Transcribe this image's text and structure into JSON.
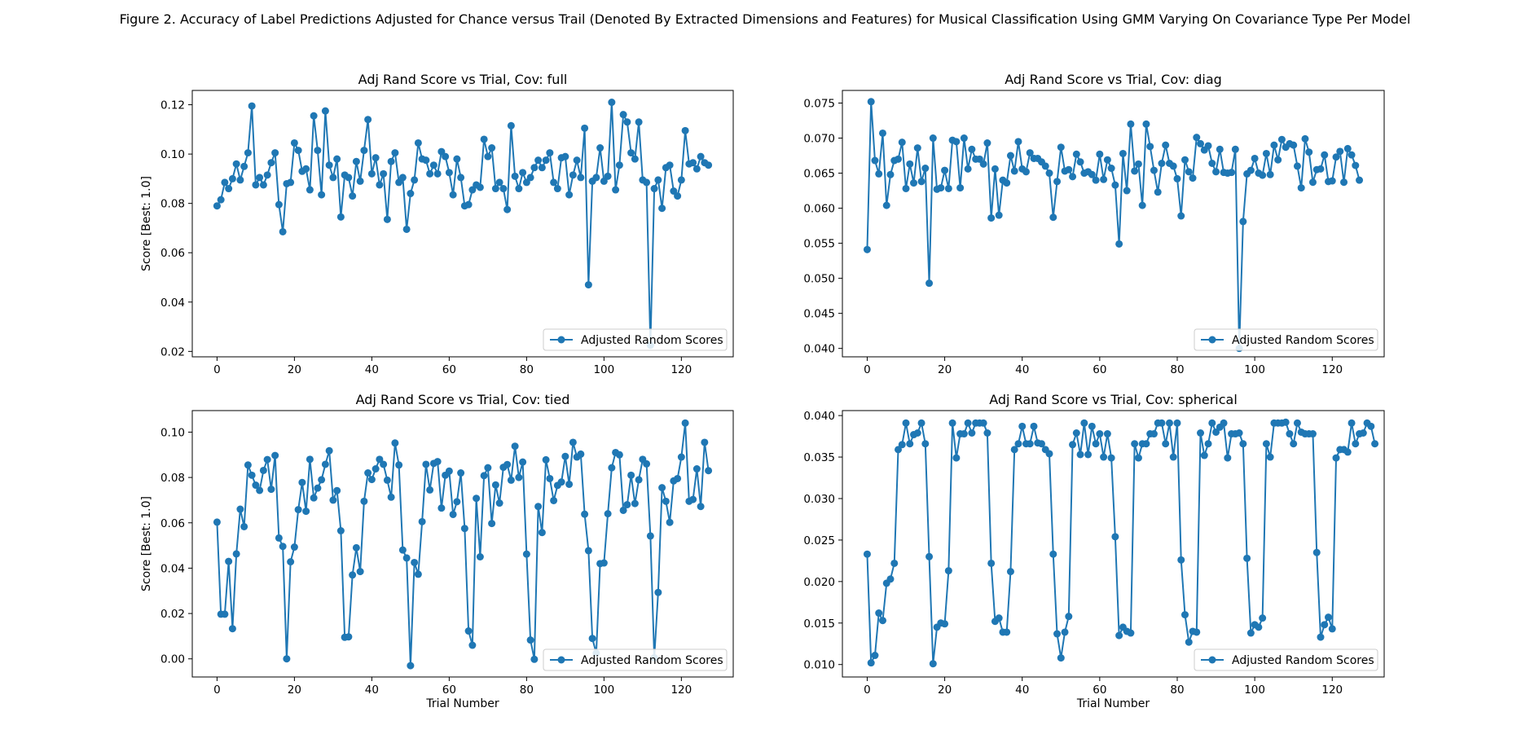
{
  "figure": {
    "title": "Figure 2. Accuracy of Label Predictions Adjusted for Chance versus Trail (Denoted By Extracted Dimensions and Features) for Musical Classification Using GMM Varying On Covariance Type Per Model"
  },
  "colors": {
    "series": "#1f77b4",
    "axes": "#000000",
    "background": "#ffffff"
  },
  "chart_data": [
    {
      "type": "line",
      "title": "Adj Rand Score vs Trial, Cov: full",
      "xlabel": "",
      "ylabel": "Score [Best: 1.0]",
      "xlim": [
        -6.4,
        133.4
      ],
      "ylim": [
        0.0178,
        0.1258
      ],
      "xticks": [
        0,
        20,
        40,
        60,
        80,
        100,
        120
      ],
      "xtick_labels": [
        "0",
        "20",
        "40",
        "60",
        "80",
        "100",
        "120"
      ],
      "yticks": [
        0.02,
        0.04,
        0.06,
        0.08,
        0.1,
        0.12
      ],
      "ytick_labels": [
        "0.02",
        "0.04",
        "0.06",
        "0.08",
        "0.10",
        "0.12"
      ],
      "grid": false,
      "legend": {
        "position": "lower-right",
        "entries": [
          "Adjusted Random Scores"
        ]
      },
      "series": [
        {
          "name": "Adjusted Random Scores",
          "marker": "circle",
          "values": [
            0.079,
            0.0815,
            0.0885,
            0.086,
            0.09,
            0.096,
            0.0895,
            0.095,
            0.1005,
            0.1195,
            0.0875,
            0.0905,
            0.0875,
            0.0915,
            0.0965,
            0.1005,
            0.0795,
            0.0685,
            0.088,
            0.0885,
            0.1045,
            0.1015,
            0.093,
            0.094,
            0.0855,
            0.1155,
            0.1015,
            0.0835,
            0.1175,
            0.0955,
            0.0905,
            0.098,
            0.0745,
            0.0915,
            0.0905,
            0.083,
            0.097,
            0.089,
            0.1015,
            0.114,
            0.092,
            0.0985,
            0.0875,
            0.092,
            0.0735,
            0.097,
            0.1005,
            0.0885,
            0.0905,
            0.0695,
            0.084,
            0.0895,
            0.1045,
            0.098,
            0.0975,
            0.092,
            0.0955,
            0.092,
            0.101,
            0.099,
            0.0925,
            0.0835,
            0.098,
            0.0905,
            0.079,
            0.0795,
            0.0855,
            0.0875,
            0.0865,
            0.106,
            0.099,
            0.1025,
            0.086,
            0.0885,
            0.086,
            0.0775,
            0.1115,
            0.091,
            0.086,
            0.0925,
            0.0885,
            0.0905,
            0.0945,
            0.0975,
            0.0945,
            0.0975,
            0.1005,
            0.0885,
            0.086,
            0.0985,
            0.099,
            0.0835,
            0.0915,
            0.0975,
            0.0905,
            0.1105,
            0.047,
            0.089,
            0.0905,
            0.1025,
            0.089,
            0.091,
            0.121,
            0.0855,
            0.0955,
            0.116,
            0.113,
            0.1005,
            0.098,
            0.113,
            0.0895,
            0.0885,
            0.0225,
            0.086,
            0.0895,
            0.078,
            0.0945,
            0.0955,
            0.085,
            0.083,
            0.0895,
            0.1095,
            0.096,
            0.0965,
            0.094,
            0.099,
            0.0965,
            0.0955
          ]
        }
      ]
    },
    {
      "type": "line",
      "title": "Adj Rand Score vs Trial, Cov: diag",
      "xlabel": "",
      "ylabel": "",
      "xlim": [
        -6.4,
        133.4
      ],
      "ylim": [
        0.0388,
        0.0768
      ],
      "xticks": [
        0,
        20,
        40,
        60,
        80,
        100,
        120
      ],
      "xtick_labels": [
        "0",
        "20",
        "40",
        "60",
        "80",
        "100",
        "120"
      ],
      "yticks": [
        0.04,
        0.045,
        0.05,
        0.055,
        0.06,
        0.065,
        0.07,
        0.075
      ],
      "ytick_labels": [
        "0.040",
        "0.045",
        "0.050",
        "0.055",
        "0.060",
        "0.065",
        "0.070",
        "0.075"
      ],
      "grid": false,
      "legend": {
        "position": "lower-right",
        "entries": [
          "Adjusted Random Scores"
        ]
      },
      "series": [
        {
          "name": "Adjusted Random Scores",
          "marker": "circle",
          "values": [
            0.0541,
            0.0752,
            0.0668,
            0.0649,
            0.0707,
            0.0604,
            0.0648,
            0.0668,
            0.067,
            0.0694,
            0.0628,
            0.0663,
            0.0636,
            0.0686,
            0.0638,
            0.0657,
            0.0493,
            0.07,
            0.0627,
            0.0629,
            0.0654,
            0.0628,
            0.0697,
            0.0695,
            0.0629,
            0.07,
            0.0656,
            0.0684,
            0.067,
            0.067,
            0.0663,
            0.0693,
            0.0586,
            0.0656,
            0.059,
            0.064,
            0.0636,
            0.0675,
            0.0653,
            0.0695,
            0.0656,
            0.0652,
            0.0679,
            0.0671,
            0.0671,
            0.0666,
            0.066,
            0.065,
            0.0587,
            0.0638,
            0.0687,
            0.0653,
            0.0655,
            0.0645,
            0.0677,
            0.0666,
            0.065,
            0.0652,
            0.0648,
            0.064,
            0.0677,
            0.0641,
            0.0669,
            0.0657,
            0.0633,
            0.0549,
            0.0678,
            0.0625,
            0.072,
            0.0653,
            0.0663,
            0.0604,
            0.072,
            0.0688,
            0.0654,
            0.0623,
            0.0664,
            0.069,
            0.0664,
            0.066,
            0.0642,
            0.0589,
            0.0669,
            0.0652,
            0.0643,
            0.0701,
            0.0692,
            0.0683,
            0.0689,
            0.0664,
            0.0652,
            0.0684,
            0.0651,
            0.065,
            0.0651,
            0.0684,
            0.04,
            0.0581,
            0.0649,
            0.0654,
            0.0671,
            0.065,
            0.0647,
            0.0678,
            0.0648,
            0.069,
            0.0669,
            0.0698,
            0.0687,
            0.0692,
            0.069,
            0.066,
            0.0629,
            0.0699,
            0.068,
            0.0637,
            0.0655,
            0.0656,
            0.0676,
            0.0638,
            0.0639,
            0.0673,
            0.0681,
            0.0637,
            0.0685,
            0.0676,
            0.0661,
            0.064
          ]
        }
      ]
    },
    {
      "type": "line",
      "title": "Adj Rand Score vs Trial, Cov: tied",
      "xlabel": "Trial Number",
      "ylabel": "Score [Best: 1.0]",
      "xlim": [
        -6.4,
        133.4
      ],
      "ylim": [
        -0.008,
        0.1095
      ],
      "xticks": [
        0,
        20,
        40,
        60,
        80,
        100,
        120
      ],
      "xtick_labels": [
        "0",
        "20",
        "40",
        "60",
        "80",
        "100",
        "120"
      ],
      "yticks": [
        0.0,
        0.02,
        0.04,
        0.06,
        0.08,
        0.1
      ],
      "ytick_labels": [
        "0.00",
        "0.02",
        "0.04",
        "0.06",
        "0.08",
        "0.10"
      ],
      "grid": false,
      "legend": {
        "position": "lower-right",
        "entries": [
          "Adjusted Random Scores"
        ]
      },
      "series": [
        {
          "name": "Adjusted Random Scores",
          "marker": "circle",
          "values": [
            0.0603,
            0.0197,
            0.0197,
            0.043,
            0.0133,
            0.0463,
            0.066,
            0.0583,
            0.0855,
            0.081,
            0.0766,
            0.0743,
            0.0831,
            0.0879,
            0.0748,
            0.0897,
            0.0533,
            0.0496,
            0.0,
            0.0428,
            0.0493,
            0.0658,
            0.0778,
            0.0651,
            0.088,
            0.071,
            0.0753,
            0.079,
            0.0858,
            0.0918,
            0.07,
            0.0742,
            0.0565,
            0.0095,
            0.0097,
            0.037,
            0.049,
            0.0385,
            0.0695,
            0.082,
            0.0791,
            0.0838,
            0.088,
            0.0858,
            0.0788,
            0.0713,
            0.0952,
            0.0855,
            0.048,
            0.0445,
            -0.003,
            0.0425,
            0.0373,
            0.0605,
            0.0858,
            0.0745,
            0.0862,
            0.087,
            0.0665,
            0.081,
            0.0828,
            0.0637,
            0.0693,
            0.082,
            0.0575,
            0.0123,
            0.006,
            0.0708,
            0.045,
            0.0808,
            0.0843,
            0.0597,
            0.0767,
            0.0687,
            0.0845,
            0.0857,
            0.0788,
            0.0938,
            0.08,
            0.0868,
            0.0462,
            0.0083,
            -0.0002,
            0.0672,
            0.0557,
            0.0878,
            0.0795,
            0.0698,
            0.0765,
            0.078,
            0.0893,
            0.077,
            0.0955,
            0.089,
            0.0903,
            0.0638,
            0.0477,
            0.009,
            0.0025,
            0.042,
            0.0423,
            0.064,
            0.0843,
            0.091,
            0.09,
            0.0655,
            0.068,
            0.081,
            0.0685,
            0.079,
            0.088,
            0.086,
            0.0542,
            0.0005,
            0.0293,
            0.0755,
            0.0695,
            0.0602,
            0.0785,
            0.0795,
            0.089,
            0.104,
            0.0695,
            0.0703,
            0.0838,
            0.0672,
            0.0955,
            0.083
          ]
        }
      ]
    },
    {
      "type": "line",
      "title": "Adj Rand Score vs Trial, Cov: spherical",
      "xlabel": "Trial Number",
      "ylabel": "",
      "xlim": [
        -6.4,
        133.4
      ],
      "ylim": [
        0.0085,
        0.0406
      ],
      "xticks": [
        0,
        20,
        40,
        60,
        80,
        100,
        120
      ],
      "xtick_labels": [
        "0",
        "20",
        "40",
        "60",
        "80",
        "100",
        "120"
      ],
      "yticks": [
        0.01,
        0.015,
        0.02,
        0.025,
        0.03,
        0.035,
        0.04
      ],
      "ytick_labels": [
        "0.010",
        "0.015",
        "0.020",
        "0.025",
        "0.030",
        "0.035",
        "0.040"
      ],
      "grid": false,
      "legend": {
        "position": "lower-right",
        "entries": [
          "Adjusted Random Scores"
        ]
      },
      "series": [
        {
          "name": "Adjusted Random Scores",
          "marker": "circle",
          "values": [
            0.0233,
            0.0102,
            0.0111,
            0.0162,
            0.0153,
            0.0198,
            0.0203,
            0.0222,
            0.0359,
            0.0365,
            0.0391,
            0.0366,
            0.0377,
            0.0379,
            0.0391,
            0.0366,
            0.023,
            0.0101,
            0.0145,
            0.015,
            0.0149,
            0.0213,
            0.0391,
            0.0349,
            0.0378,
            0.0378,
            0.0391,
            0.0379,
            0.0391,
            0.0391,
            0.0391,
            0.0379,
            0.0222,
            0.0152,
            0.0156,
            0.0139,
            0.0139,
            0.0212,
            0.0359,
            0.0366,
            0.0387,
            0.0366,
            0.0366,
            0.0387,
            0.0367,
            0.0366,
            0.0359,
            0.0354,
            0.0233,
            0.0137,
            0.0108,
            0.0139,
            0.0158,
            0.0365,
            0.0379,
            0.0353,
            0.0391,
            0.0353,
            0.0387,
            0.0366,
            0.0378,
            0.035,
            0.0378,
            0.0349,
            0.0254,
            0.0135,
            0.0145,
            0.014,
            0.0138,
            0.0366,
            0.0349,
            0.0366,
            0.0366,
            0.0378,
            0.0378,
            0.0391,
            0.0391,
            0.0366,
            0.0391,
            0.035,
            0.0391,
            0.0226,
            0.016,
            0.0127,
            0.014,
            0.0139,
            0.0379,
            0.0352,
            0.0366,
            0.0391,
            0.038,
            0.0386,
            0.0391,
            0.0349,
            0.0378,
            0.0378,
            0.0379,
            0.0366,
            0.0228,
            0.0138,
            0.0148,
            0.0145,
            0.0156,
            0.0366,
            0.035,
            0.0391,
            0.0391,
            0.0391,
            0.0392,
            0.0378,
            0.0366,
            0.0391,
            0.038,
            0.0378,
            0.0378,
            0.0378,
            0.0235,
            0.0133,
            0.0148,
            0.0157,
            0.0143,
            0.0349,
            0.0359,
            0.0359,
            0.0356,
            0.0391,
            0.0366,
            0.0378,
            0.0379,
            0.0391,
            0.0387,
            0.0366
          ]
        }
      ]
    }
  ]
}
